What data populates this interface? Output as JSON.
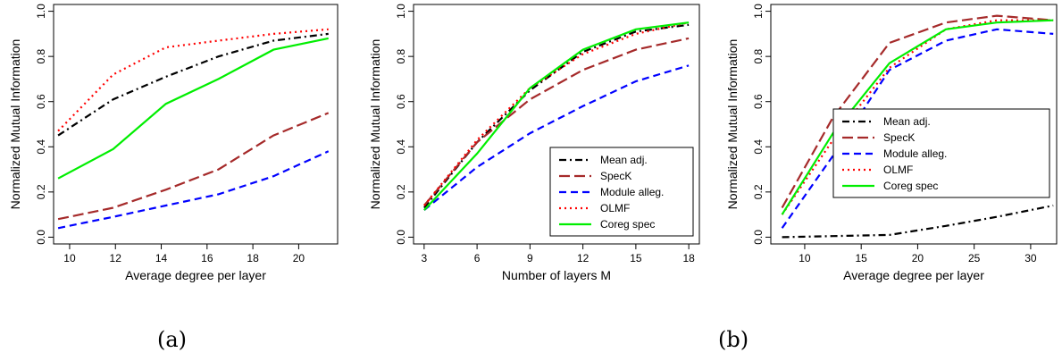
{
  "captions": [
    "(a)",
    "(b)"
  ],
  "chart_data": [
    {
      "type": "line",
      "xlabel": "Average degree per layer",
      "ylabel": "Normalized Mutual Information",
      "xlim": [
        9.3,
        21.7
      ],
      "ylim": [
        -0.03,
        1.03
      ],
      "xticks": [
        10,
        12,
        14,
        16,
        18,
        20
      ],
      "yticks": [
        0.0,
        0.2,
        0.4,
        0.6,
        0.8,
        1.0
      ],
      "legend": null,
      "series": [
        {
          "name": "Mean adj.",
          "color": "#000000",
          "dash": "dashdot",
          "x": [
            9.5,
            11.9,
            14.2,
            16.5,
            18.9,
            21.3
          ],
          "y": [
            0.45,
            0.61,
            0.71,
            0.8,
            0.87,
            0.9
          ]
        },
        {
          "name": "SpecK",
          "color": "#a52a2a",
          "dash": "longdash",
          "x": [
            9.5,
            11.9,
            14.2,
            16.5,
            18.9,
            21.3
          ],
          "y": [
            0.08,
            0.13,
            0.21,
            0.3,
            0.45,
            0.55
          ]
        },
        {
          "name": "Module alleg.",
          "color": "#0000ff",
          "dash": "dashed",
          "x": [
            9.5,
            11.9,
            14.2,
            16.5,
            18.9,
            21.3
          ],
          "y": [
            0.04,
            0.09,
            0.14,
            0.19,
            0.27,
            0.38
          ]
        },
        {
          "name": "OLMF",
          "color": "#ff0000",
          "dash": "dotted",
          "x": [
            9.5,
            11.9,
            14.2,
            16.5,
            18.9,
            21.3
          ],
          "y": [
            0.47,
            0.72,
            0.84,
            0.87,
            0.9,
            0.92
          ]
        },
        {
          "name": "Coreg spec",
          "color": "#00ee00",
          "dash": "solid",
          "x": [
            9.5,
            11.9,
            14.2,
            16.5,
            18.9,
            21.3
          ],
          "y": [
            0.26,
            0.39,
            0.59,
            0.7,
            0.83,
            0.88
          ]
        }
      ]
    },
    {
      "type": "line",
      "xlabel": "Number of layers M",
      "ylabel": "Normalized Mutual Information",
      "xlim": [
        2.4,
        18.6
      ],
      "ylim": [
        -0.03,
        1.03
      ],
      "xticks": [
        3,
        6,
        9,
        12,
        15,
        18
      ],
      "yticks": [
        0.0,
        0.2,
        0.4,
        0.6,
        0.8,
        1.0
      ],
      "legend": "bottom-right",
      "series": [
        {
          "name": "Mean adj.",
          "color": "#000000",
          "dash": "dashdot",
          "x": [
            3,
            6,
            9,
            12,
            15,
            18
          ],
          "y": [
            0.13,
            0.42,
            0.65,
            0.82,
            0.91,
            0.94
          ]
        },
        {
          "name": "SpecK",
          "color": "#a52a2a",
          "dash": "longdash",
          "x": [
            3,
            6,
            9,
            12,
            15,
            18
          ],
          "y": [
            0.14,
            0.42,
            0.61,
            0.74,
            0.83,
            0.88
          ]
        },
        {
          "name": "Module alleg.",
          "color": "#0000ff",
          "dash": "dashed",
          "x": [
            3,
            6,
            9,
            12,
            15,
            18
          ],
          "y": [
            0.12,
            0.31,
            0.46,
            0.58,
            0.69,
            0.76
          ]
        },
        {
          "name": "OLMF",
          "color": "#ff0000",
          "dash": "dotted",
          "x": [
            3,
            6,
            9,
            12,
            15,
            18
          ],
          "y": [
            0.14,
            0.43,
            0.66,
            0.81,
            0.9,
            0.95
          ]
        },
        {
          "name": "Coreg spec",
          "color": "#00ee00",
          "dash": "solid",
          "x": [
            3,
            6,
            9,
            12,
            15,
            18
          ],
          "y": [
            0.12,
            0.37,
            0.66,
            0.83,
            0.92,
            0.95
          ]
        }
      ]
    },
    {
      "type": "line",
      "xlabel": "Average degree per layer",
      "ylabel": "Normalized Mutual Information",
      "xlim": [
        7.0,
        32.3
      ],
      "ylim": [
        -0.03,
        1.03
      ],
      "xticks": [
        10,
        15,
        20,
        25,
        30
      ],
      "yticks": [
        0.0,
        0.2,
        0.4,
        0.6,
        0.8,
        1.0
      ],
      "legend": "right",
      "series": [
        {
          "name": "Mean adj.",
          "color": "#000000",
          "dash": "dashdot",
          "x": [
            8,
            12.5,
            17.5,
            22.5,
            27,
            32
          ],
          "y": [
            0.0,
            0.005,
            0.01,
            0.05,
            0.09,
            0.14
          ]
        },
        {
          "name": "SpecK",
          "color": "#a52a2a",
          "dash": "longdash",
          "x": [
            8,
            12.5,
            17.5,
            22.5,
            27,
            32
          ],
          "y": [
            0.13,
            0.53,
            0.86,
            0.95,
            0.98,
            0.96
          ]
        },
        {
          "name": "Module alleg.",
          "color": "#0000ff",
          "dash": "dashed",
          "x": [
            8,
            12.5,
            17.5,
            22.5,
            27,
            32
          ],
          "y": [
            0.04,
            0.36,
            0.74,
            0.87,
            0.92,
            0.9
          ]
        },
        {
          "name": "OLMF",
          "color": "#ff0000",
          "dash": "dotted",
          "x": [
            8,
            12.5,
            17.5,
            22.5,
            27,
            32
          ],
          "y": [
            0.1,
            0.43,
            0.75,
            0.92,
            0.96,
            0.96
          ]
        },
        {
          "name": "Coreg spec",
          "color": "#00ee00",
          "dash": "solid",
          "x": [
            8,
            12.5,
            17.5,
            22.5,
            27,
            32
          ],
          "y": [
            0.1,
            0.46,
            0.77,
            0.92,
            0.95,
            0.96
          ]
        }
      ]
    }
  ]
}
